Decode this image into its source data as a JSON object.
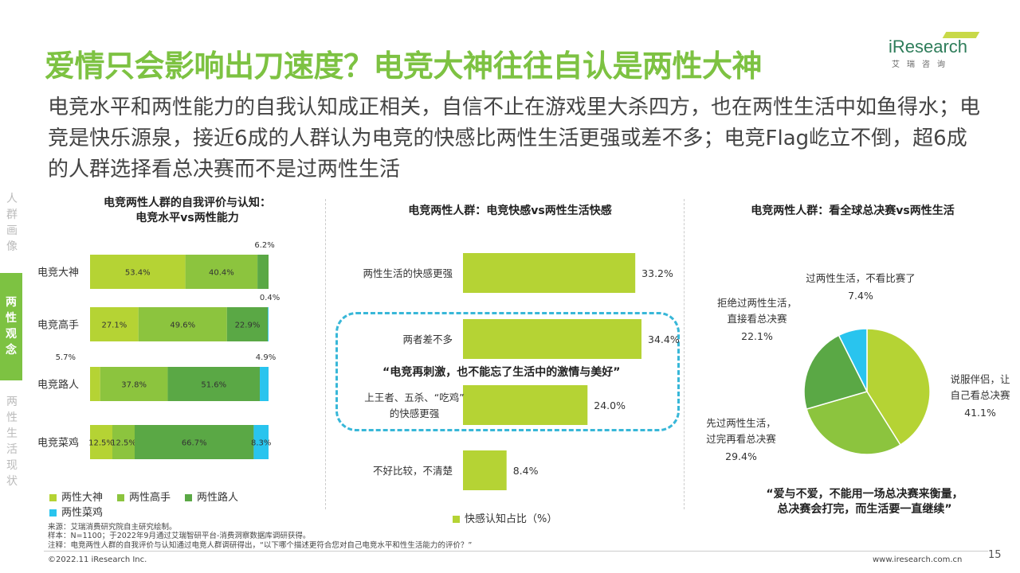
{
  "header": {
    "title": "爱情只会影响出刀速度？电竞大神往往自认是两性大神",
    "subtitle": "电竞水平和两性能力的自我认知成正相关，自信不止在游戏里大杀四方，也在两性生活中如鱼得水；电竞是快乐源泉，接近6成的人群认为电竞的快感比两性生活更强或差不多；电竞Flag屹立不倒，超6成的人群选择看总决赛而不是过两性生活",
    "logo_text": "iResearch",
    "logo_sub": "艾瑞咨询"
  },
  "sidebar": {
    "top": "人群画像",
    "active": "两性观念",
    "bottom": "两性生活现状"
  },
  "colors": {
    "accent": "#7dc242",
    "s1": "#b5d334",
    "s2": "#8cc43e",
    "s3": "#5aa845",
    "s4": "#29c4ee",
    "dash": "#38b7d8"
  },
  "chart_data": [
    {
      "type": "bar",
      "orientation": "horizontal-stacked",
      "title": "电竞两性人群的自我评价与认知：电竞水平vs两性能力",
      "categories": [
        "电竞大神",
        "电竞高手",
        "电竞路人",
        "电竞菜鸡"
      ],
      "series": [
        {
          "name": "两性大神",
          "values": [
            53.4,
            27.1,
            5.7,
            12.5
          ]
        },
        {
          "name": "两性高手",
          "values": [
            40.4,
            49.6,
            37.8,
            12.5
          ]
        },
        {
          "name": "两性路人",
          "values": [
            6.2,
            22.9,
            51.6,
            66.7
          ]
        },
        {
          "name": "两性菜鸡",
          "values": [
            0.0,
            0.4,
            4.9,
            8.3
          ]
        }
      ],
      "labels": [
        [
          "53.4%",
          "40.4%",
          "6.2%",
          ""
        ],
        [
          "27.1%",
          "49.6%",
          "22.9%",
          "0.4%"
        ],
        [
          "5.7%",
          "37.8%",
          "51.6%",
          "4.9%"
        ],
        [
          "12.5%",
          "12.5%",
          "66.7%",
          "8.3%"
        ]
      ],
      "xlim": [
        0,
        100
      ]
    },
    {
      "type": "bar",
      "orientation": "horizontal",
      "title": "电竞两性人群：电竞快感vs两性生活快感",
      "categories": [
        "两性生活的快感更强",
        "两者差不多",
        "上王者、五杀、“吃鸡”的快感更强",
        "不好比较，不清楚"
      ],
      "category_lines": [
        [
          "两性生活的快感更强"
        ],
        [
          "两者差不多"
        ],
        [
          "上王者、五杀、“吃鸡”",
          "的快感更强"
        ],
        [
          "不好比较，不清楚"
        ]
      ],
      "series": [
        {
          "name": "快感认知占比（%）",
          "values": [
            33.2,
            34.4,
            24.0,
            8.4
          ]
        }
      ],
      "labels": [
        "33.2%",
        "34.4%",
        "24.0%",
        "8.4%"
      ],
      "quote": "“电竞再刺激，也不能忘了生活中的激情与美好”"
    },
    {
      "type": "pie",
      "title": "电竞两性人群：看全球总决赛vs两性生活",
      "categories": [
        "说服伴侣，让自己看总决赛",
        "先过两性生活，过完再看总决赛",
        "拒绝过两性生活，直接看总决赛",
        "过两性生活，不看比赛了"
      ],
      "label_lines": [
        [
          "说服伴侣，让",
          "自己看总决赛"
        ],
        [
          "先过两性生活，",
          "过完再看总决赛"
        ],
        [
          "拒绝过两性生活，",
          "直接看总决赛"
        ],
        [
          "过两性生活，不看比赛了"
        ]
      ],
      "values": [
        41.1,
        29.4,
        22.1,
        7.4
      ],
      "labels": [
        "41.1%",
        "29.4%",
        "22.1%",
        "7.4%"
      ],
      "quote": "“爱与不爱，不能用一场总决赛来衡量，总决赛会打完，而生活要一直继续”"
    }
  ],
  "footer": {
    "source": "来源：艾瑞消费研究院自主研究绘制。",
    "sample": "样本：N=1100；于2022年9月通过艾瑞智研平台-消费洞察数据库调研获得。",
    "note": "注释：电竞两性人群的自我评价与认知通过电竞人群调研得出，“以下哪个描述更符合您对自己电竞水平和性生活能力的评价？”",
    "copyright": "©2022.11 iResearch Inc.",
    "website": "www.iresearch.com.cn",
    "page": "15"
  }
}
